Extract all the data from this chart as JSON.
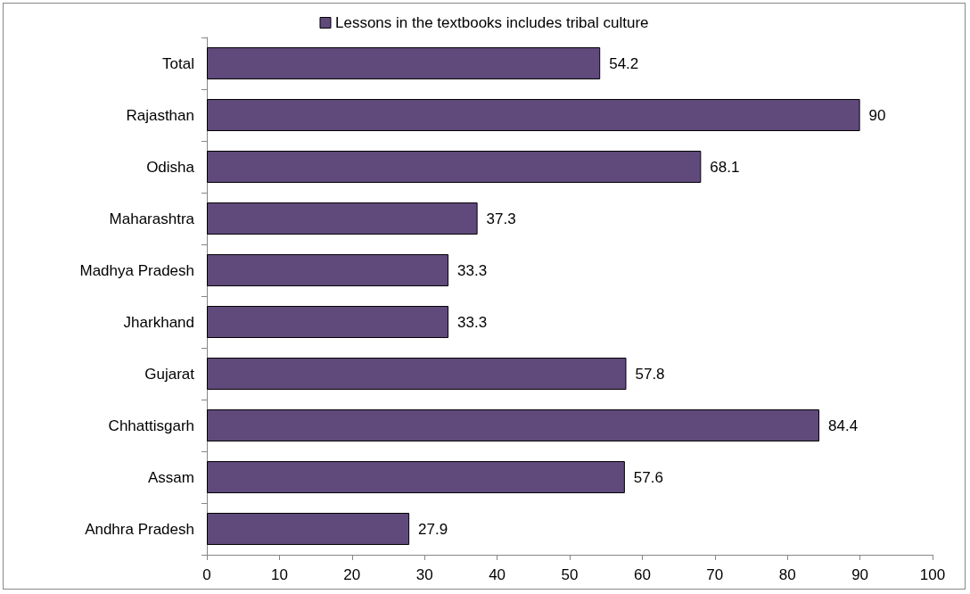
{
  "chart_data": {
    "type": "bar",
    "orientation": "horizontal",
    "categories": [
      "Total",
      "Rajasthan",
      "Odisha",
      "Maharashtra",
      "Madhya Pradesh",
      "Jharkhand",
      "Gujarat",
      "Chhattisgarh",
      "Assam",
      "Andhra Pradesh"
    ],
    "series": [
      {
        "name": "Lessons in the textbooks includes tribal culture",
        "color": "#604a7b",
        "values": [
          54.2,
          90,
          68.1,
          37.3,
          33.3,
          33.3,
          57.8,
          84.4,
          57.6,
          27.9
        ]
      }
    ],
    "xlim": [
      0,
      100
    ],
    "xticks": [
      0,
      10,
      20,
      30,
      40,
      50,
      60,
      70,
      80,
      90,
      100
    ],
    "data_labels": true,
    "legend": "top",
    "grid": false
  }
}
